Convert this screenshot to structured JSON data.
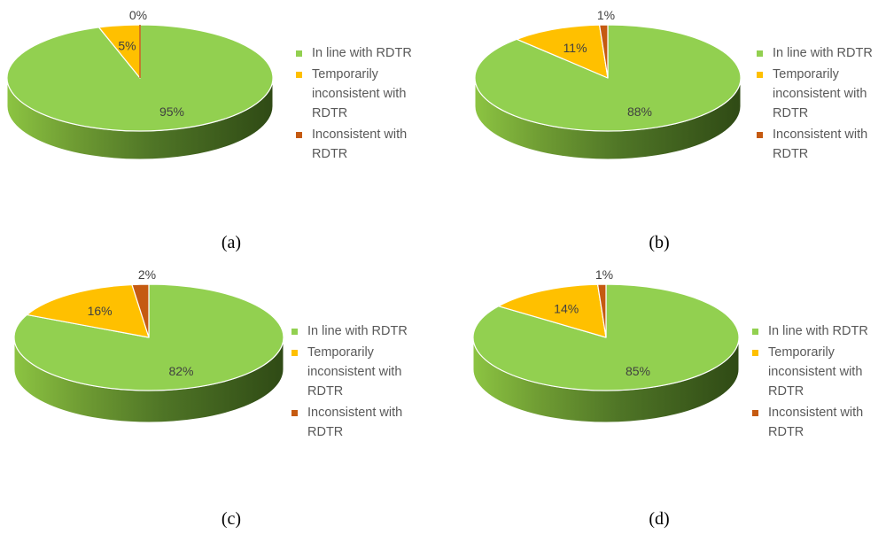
{
  "colors": {
    "inline": "#92D050",
    "temporarily": "#FFC000",
    "inconsistent": "#C55A11"
  },
  "chart_data": [
    {
      "type": "pie",
      "caption": "(a)",
      "categories": [
        "In line with RDTR",
        "Temporarily inconsistent with RDTR",
        "Inconsistent with RDTR"
      ],
      "values": [
        95,
        5,
        0
      ],
      "data_labels": [
        "95%",
        "5%",
        "0%"
      ],
      "legend_position": "right"
    },
    {
      "type": "pie",
      "caption": "(b)",
      "categories": [
        "In line with RDTR",
        "Temporarily inconsistent with RDTR",
        "Inconsistent with RDTR"
      ],
      "values": [
        88,
        11,
        1
      ],
      "data_labels": [
        "88%",
        "11%",
        "1%"
      ],
      "legend_position": "right"
    },
    {
      "type": "pie",
      "caption": "(c)",
      "categories": [
        "In line with RDTR",
        "Temporarily inconsistent with RDTR",
        "Inconsistent with RDTR"
      ],
      "values": [
        82,
        16,
        2
      ],
      "data_labels": [
        "82%",
        "16%",
        "2%"
      ],
      "legend_position": "right"
    },
    {
      "type": "pie",
      "caption": "(d)",
      "categories": [
        "In line with RDTR",
        "Temporarily inconsistent with RDTR",
        "Inconsistent with RDTR"
      ],
      "values": [
        85,
        14,
        1
      ],
      "data_labels": [
        "85%",
        "14%",
        "1%"
      ],
      "legend_position": "right"
    }
  ],
  "legend": {
    "inline_label": "In line with RDTR",
    "temporarily_line1": "Temporarily",
    "temporarily_line2": "inconsistent with",
    "temporarily_line3": "RDTR",
    "inconsistent_line1": "Inconsistent with",
    "inconsistent_line2": "RDTR"
  }
}
